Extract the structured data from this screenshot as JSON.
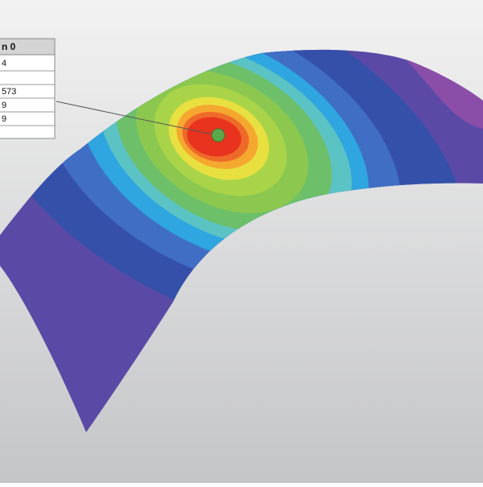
{
  "probe_table": {
    "header": "n 0",
    "rows": [
      "4",
      "573",
      "9",
      "9"
    ]
  }
}
